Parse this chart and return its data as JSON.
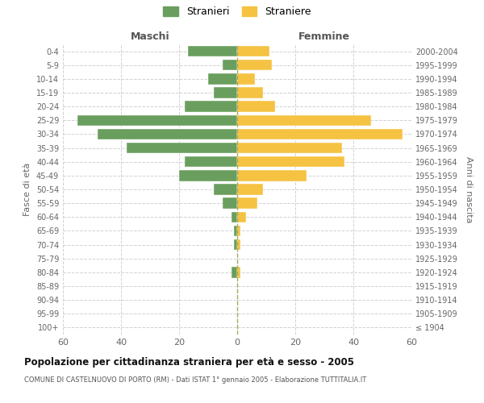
{
  "age_groups": [
    "100+",
    "95-99",
    "90-94",
    "85-89",
    "80-84",
    "75-79",
    "70-74",
    "65-69",
    "60-64",
    "55-59",
    "50-54",
    "45-49",
    "40-44",
    "35-39",
    "30-34",
    "25-29",
    "20-24",
    "15-19",
    "10-14",
    "5-9",
    "0-4"
  ],
  "birth_years": [
    "≤ 1904",
    "1905-1909",
    "1910-1914",
    "1915-1919",
    "1920-1924",
    "1925-1929",
    "1930-1934",
    "1935-1939",
    "1940-1944",
    "1945-1949",
    "1950-1954",
    "1955-1959",
    "1960-1964",
    "1965-1969",
    "1970-1974",
    "1975-1979",
    "1980-1984",
    "1985-1989",
    "1990-1994",
    "1995-1999",
    "2000-2004"
  ],
  "males": [
    0,
    0,
    0,
    0,
    2,
    0,
    1,
    1,
    2,
    5,
    8,
    20,
    18,
    38,
    48,
    55,
    18,
    8,
    10,
    5,
    17
  ],
  "females": [
    0,
    0,
    0,
    0,
    1,
    0,
    1,
    1,
    3,
    7,
    9,
    24,
    37,
    36,
    57,
    46,
    13,
    9,
    6,
    12,
    11
  ],
  "male_color": "#6a9e5e",
  "female_color": "#f5c242",
  "grid_color": "#cccccc",
  "title": "Popolazione per cittadinanza straniera per età e sesso - 2005",
  "subtitle": "COMUNE DI CASTELNUOVO DI PORTO (RM) - Dati ISTAT 1° gennaio 2005 - Elaborazione TUTTITALIA.IT",
  "xlabel_left": "Maschi",
  "xlabel_right": "Femmine",
  "ylabel_left": "Fasce di età",
  "ylabel_right": "Anni di nascita",
  "legend_male": "Stranieri",
  "legend_female": "Straniere",
  "xlim": 60
}
